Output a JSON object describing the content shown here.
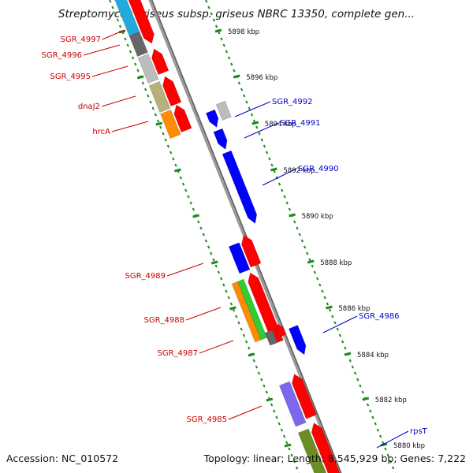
{
  "title": "Streptomyces griseus subsp. griseus NBRC 13350, complete gen...",
  "footer": {
    "accession": "Accession: NC_010572",
    "topology": "Topology: linear; Length: 8,545,929 bp; Genes: 7,222"
  },
  "colors": {
    "backbone": "#8c8c8c",
    "tick": "#1e8a1e",
    "left_label": "#cc0000",
    "right_label": "#0000cc",
    "red": "#ff0000",
    "blue": "#0000ff",
    "gray": "#bdbdbd",
    "darkgray": "#666666",
    "olive": "#b8b07a",
    "orange": "#ff8c00",
    "green": "#33cc33",
    "purple": "#7b68ee",
    "darkolive": "#6b8e23",
    "cyan": "#22aadd"
  },
  "scale_ticks": [
    {
      "kbp": 5898,
      "label": "5898 kbp"
    },
    {
      "kbp": 5896,
      "label": "5896 kbp"
    },
    {
      "kbp": 5894,
      "label": "5894 kbp"
    },
    {
      "kbp": 5892,
      "label": "5892 kbp"
    },
    {
      "kbp": 5890,
      "label": "5890 kbp"
    },
    {
      "kbp": 5888,
      "label": "5888 kbp"
    },
    {
      "kbp": 5886,
      "label": "5886 kbp"
    },
    {
      "kbp": 5884,
      "label": "5884 kbp"
    },
    {
      "kbp": 5882,
      "label": "5882 kbp"
    },
    {
      "kbp": 5880,
      "label": "5880 kbp"
    }
  ],
  "genes_left": [
    {
      "label": "SGR_4997"
    },
    {
      "label": "SGR_4996"
    },
    {
      "label": "SGR_4995"
    },
    {
      "label": "dnaJ2"
    },
    {
      "label": "hrcA"
    },
    {
      "label": "SGR_4989"
    },
    {
      "label": "SGR_4988"
    },
    {
      "label": "SGR_4987"
    },
    {
      "label": "SGR_4985"
    }
  ],
  "genes_right": [
    {
      "label": "SGR_4992"
    },
    {
      "label": "SGR_4991"
    },
    {
      "label": "SGR_4990"
    },
    {
      "label": "SGR_4986"
    },
    {
      "label": "rpsT"
    }
  ]
}
